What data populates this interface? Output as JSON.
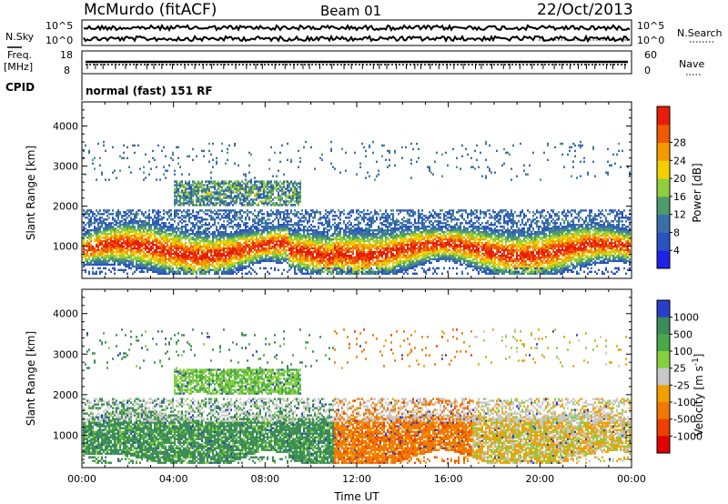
{
  "header": {
    "station": "McMurdo (fitACF)",
    "beam": "Beam 01",
    "date": "22/Oct/2013"
  },
  "noise_panel": {
    "left_label": "N.Sky",
    "right_label": "N.Search",
    "left_ticks": [
      "10^5",
      "10^0"
    ],
    "right_ticks": [
      "10^5",
      "10^0"
    ]
  },
  "freq_panel": {
    "label_line1": "Freq.",
    "label_line2": "[MHz]",
    "right_label": "Nave",
    "left_ticks": [
      "18",
      "8"
    ],
    "right_ticks": [
      "60",
      "0"
    ]
  },
  "cpid": {
    "label": "CPID",
    "text": "normal (fast) 151 RF"
  },
  "chart_data": [
    {
      "type": "heatmap",
      "quantity": "Power",
      "ylabel": "Slant Range [km]",
      "xlabel": "Time UT",
      "x_ticks": [
        "00:00",
        "04:00",
        "08:00",
        "12:00",
        "16:00",
        "20:00",
        "00:00"
      ],
      "y_ticks": [
        "1000",
        "2000",
        "3000",
        "4000"
      ],
      "xlim_hours": [
        0,
        24
      ],
      "ylim_km": [
        200,
        4600
      ],
      "colorbar": {
        "label": "Power [dB]",
        "ticks": [
          "4",
          "8",
          "12",
          "16",
          "20",
          "24",
          "28"
        ],
        "colors": [
          "#1f20e8",
          "#2a52c0",
          "#3a70a8",
          "#4d9a6c",
          "#8fcf3a",
          "#f2d000",
          "#f59a00",
          "#f05a00",
          "#e81c0a"
        ]
      }
    },
    {
      "type": "heatmap",
      "quantity": "Velocity",
      "ylabel": "Slant Range [km]",
      "xlabel": "Time UT",
      "x_ticks": [
        "00:00",
        "04:00",
        "08:00",
        "12:00",
        "16:00",
        "20:00",
        "00:00"
      ],
      "y_ticks": [
        "1000",
        "2000",
        "3000",
        "4000"
      ],
      "xlim_hours": [
        0,
        24
      ],
      "ylim_km": [
        200,
        4600
      ],
      "colorbar": {
        "label": "Velocity [m s",
        "label_sup": "-1",
        "label_tail": "]",
        "ticks": [
          "1000",
          "500",
          "100",
          "25",
          "-25",
          "-100",
          "-500",
          "-1000"
        ],
        "colors": [
          "#2840c8",
          "#3c8a58",
          "#4aa84a",
          "#86d040",
          "#c8c8c8",
          "#f0a000",
          "#f07800",
          "#ee4000",
          "#e00000"
        ]
      }
    }
  ],
  "xaxis_title": "Time UT",
  "colors": {
    "gray": "#c0c0c0"
  }
}
